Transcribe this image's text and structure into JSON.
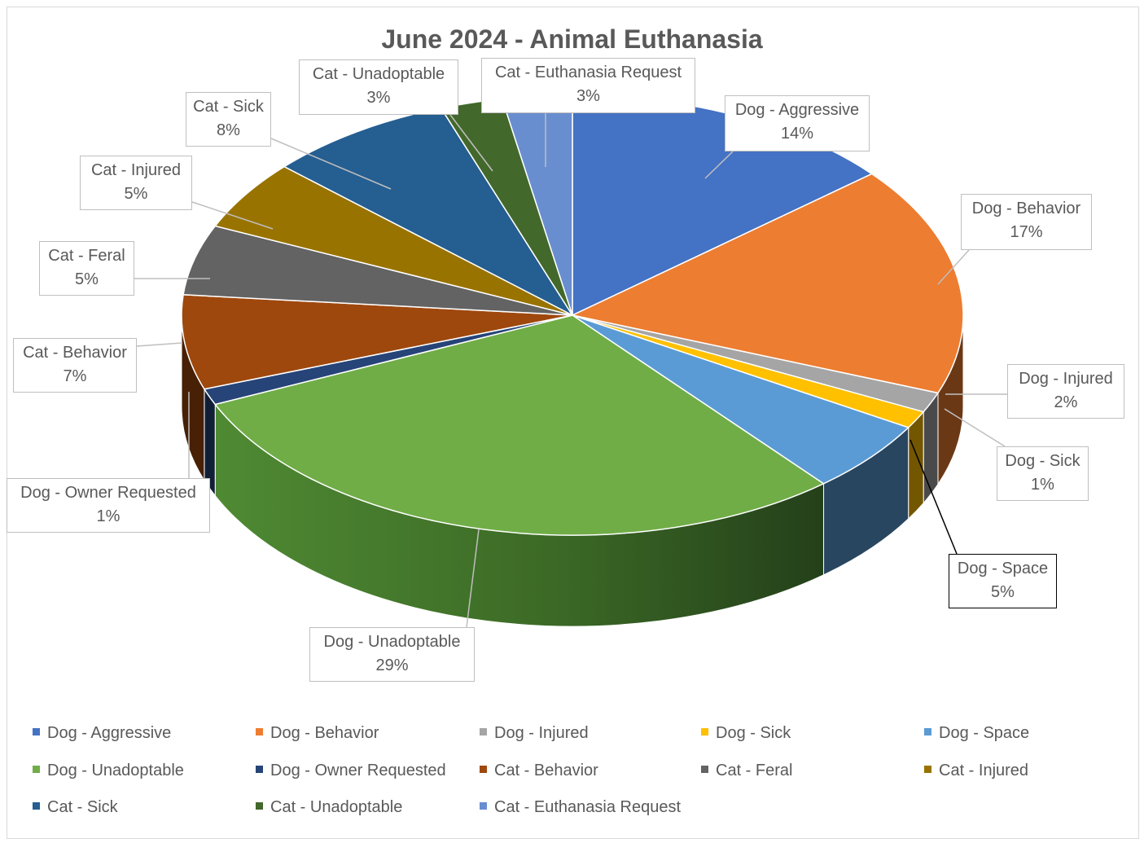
{
  "chart_data": {
    "type": "pie",
    "title": "June 2024 - Animal Euthanasia",
    "legend_position": "bottom",
    "slices": [
      {
        "label": "Dog - Aggressive",
        "percent": "14%",
        "value": 14,
        "color": "#4472C4"
      },
      {
        "label": "Dog - Behavior",
        "percent": "17%",
        "value": 17,
        "color": "#ED7D31"
      },
      {
        "label": "Dog - Injured",
        "percent": "2%",
        "value": 1.5,
        "color": "#A5A5A5"
      },
      {
        "label": "Dog - Sick",
        "percent": "1%",
        "value": 1.3,
        "color": "#FFC000"
      },
      {
        "label": "Dog - Space",
        "percent": "5%",
        "value": 5.4,
        "color": "#5B9BD5"
      },
      {
        "label": "Dog - Unadoptable",
        "percent": "29%",
        "value": 29.7,
        "color": "#70AD47"
      },
      {
        "label": "Dog - Owner Requested",
        "percent": "1%",
        "value": 1.2,
        "color": "#264478"
      },
      {
        "label": "Cat - Behavior",
        "percent": "7%",
        "value": 7,
        "color": "#9E480E"
      },
      {
        "label": "Cat - Feral",
        "percent": "5%",
        "value": 5.2,
        "color": "#636363"
      },
      {
        "label": "Cat - Injured",
        "percent": "5%",
        "value": 5.2,
        "color": "#997300"
      },
      {
        "label": "Cat - Sick",
        "percent": "8%",
        "value": 7.8,
        "color": "#255E91"
      },
      {
        "label": "Cat - Unadoptable",
        "percent": "3%",
        "value": 2.6,
        "color": "#43682B"
      },
      {
        "label": "Cat - Euthanasia Request",
        "percent": "3%",
        "value": 2.9,
        "color": "#698ED0"
      }
    ]
  }
}
